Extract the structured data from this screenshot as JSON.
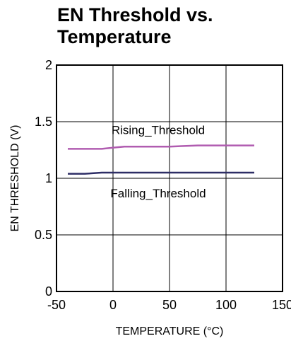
{
  "chart_data": {
    "type": "line",
    "title": "EN Threshold vs.\nTemperature",
    "xlabel": "TEMPERATURE (°C)",
    "ylabel": "EN THRESHOLD (V)",
    "xlim": [
      -50,
      150
    ],
    "ylim": [
      0,
      2
    ],
    "xticks": [
      -50,
      0,
      50,
      100,
      150
    ],
    "yticks": [
      0,
      0.5,
      1,
      1.5,
      2
    ],
    "xtick_labels": [
      "-50",
      "0",
      "50",
      "100",
      "150"
    ],
    "ytick_labels": [
      "0",
      "0.5",
      "1",
      "1.5",
      "2"
    ],
    "grid": true,
    "annotations": [
      {
        "text": "Rising_Threshold",
        "x": 40,
        "y": 1.39
      },
      {
        "text": "Falling_Threshold",
        "x": 40,
        "y": 0.83
      }
    ],
    "series": [
      {
        "color": "#b05cb0",
        "x": [
          -40,
          -25,
          -10,
          0,
          10,
          25,
          50,
          75,
          100,
          125
        ],
        "y": [
          1.26,
          1.26,
          1.26,
          1.27,
          1.28,
          1.28,
          1.28,
          1.29,
          1.29,
          1.29
        ]
      },
      {
        "color": "#2e2e66",
        "x": [
          -40,
          -25,
          -10,
          0,
          10,
          25,
          50,
          75,
          100,
          125
        ],
        "y": [
          1.04,
          1.04,
          1.05,
          1.05,
          1.05,
          1.05,
          1.05,
          1.05,
          1.05,
          1.05
        ]
      }
    ]
  }
}
